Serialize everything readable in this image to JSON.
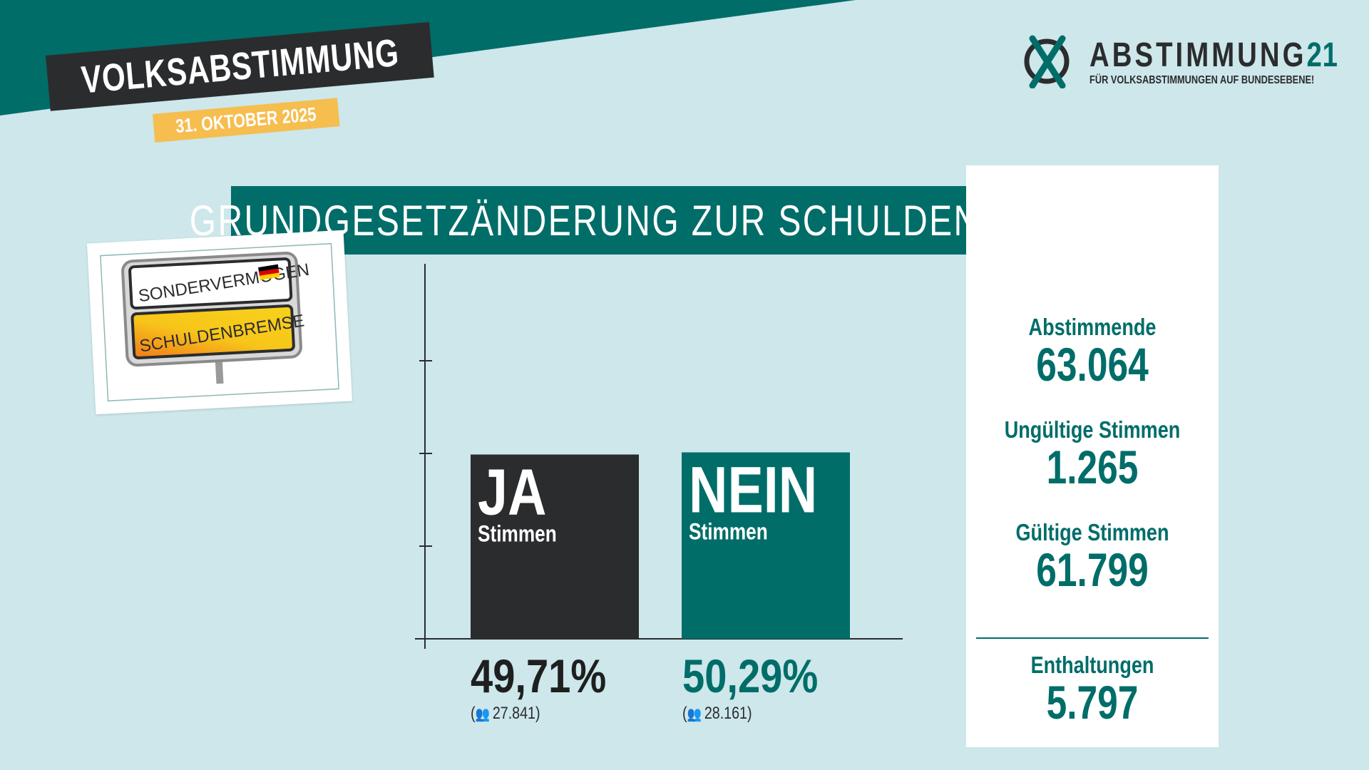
{
  "header": {
    "tag": "VOLKSABSTIMMUNG",
    "date": "31. OKTOBER 2025"
  },
  "logo": {
    "title": "ABSTIMMUNG",
    "title_number": "21",
    "subtitle": "FÜR VOLKSABSTIMMUNGEN AUF BUNDESEBENE!",
    "icon": "ballot-x-icon"
  },
  "title": "GRUNDGESETZÄNDERUNG ZUR SCHULDENBREMSE",
  "photo": {
    "sign_top": "SONDERVERMÖGEN",
    "sign_bottom": "SCHULDENBREMSE"
  },
  "chart_data": {
    "type": "bar",
    "categories": [
      "JA",
      "NEIN"
    ],
    "category_sublabels": [
      "Stimmen",
      "Stimmen"
    ],
    "values": [
      49.71,
      50.29
    ],
    "value_labels": [
      "49,71%",
      "50,29%"
    ],
    "counts": [
      "27.841",
      "28.161"
    ],
    "colors": [
      "#2b2c2e",
      "#006d69"
    ],
    "ylim": [
      0,
      100
    ],
    "grid": false,
    "title": "",
    "xlabel": "",
    "ylabel": ""
  },
  "stats": {
    "voters_label": "Abstimmende",
    "voters_value": "63.064",
    "invalid_label": "Ungültige Stimmen",
    "invalid_value": "1.265",
    "valid_label": "Gültige Stimmen",
    "valid_value": "61.799",
    "abstain_label": "Enthaltungen",
    "abstain_value": "5.797"
  },
  "colors": {
    "background": "#cde7ea",
    "accent": "#006d69",
    "dark": "#2b2c2e",
    "highlight": "#f6bd4f"
  }
}
